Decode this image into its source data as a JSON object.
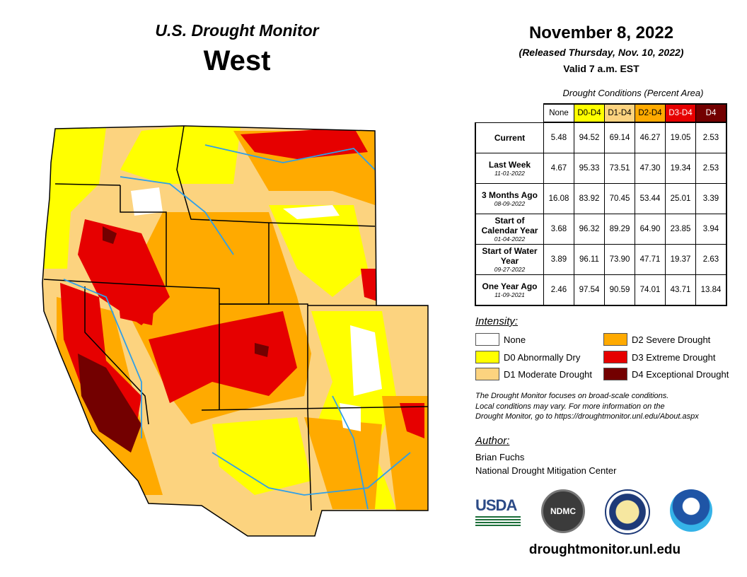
{
  "header": {
    "subtitle": "U.S. Drought Monitor",
    "title": "West",
    "date": "November 8, 2022",
    "released": "(Released Thursday, Nov. 10, 2022)",
    "valid": "Valid 7 a.m. EST"
  },
  "table": {
    "caption": "Drought Conditions (Percent Area)",
    "columns": [
      "None",
      "D0-D4",
      "D1-D4",
      "D2-D4",
      "D3-D4",
      "D4"
    ],
    "column_colors": [
      "#ffffff",
      "#ffff00",
      "#fcd37f",
      "#ffaa00",
      "#e60000",
      "#730000"
    ],
    "rows": [
      {
        "label": "Current",
        "date": "",
        "values": [
          "5.48",
          "94.52",
          "69.14",
          "46.27",
          "19.05",
          "2.53"
        ]
      },
      {
        "label": "Last Week",
        "date": "11-01-2022",
        "values": [
          "4.67",
          "95.33",
          "73.51",
          "47.30",
          "19.34",
          "2.53"
        ]
      },
      {
        "label": "3 Months Ago",
        "date": "08-09-2022",
        "values": [
          "16.08",
          "83.92",
          "70.45",
          "53.44",
          "25.01",
          "3.39"
        ]
      },
      {
        "label": "Start of Calendar Year",
        "date": "01-04-2022",
        "values": [
          "3.68",
          "96.32",
          "89.29",
          "64.90",
          "23.85",
          "3.94"
        ]
      },
      {
        "label": "Start of Water Year",
        "date": "09-27-2022",
        "values": [
          "3.89",
          "96.11",
          "73.90",
          "47.71",
          "19.37",
          "2.63"
        ]
      },
      {
        "label": "One Year Ago",
        "date": "11-09-2021",
        "values": [
          "2.46",
          "97.54",
          "90.59",
          "74.01",
          "43.71",
          "13.84"
        ]
      }
    ]
  },
  "legend": {
    "title": "Intensity:",
    "items": [
      {
        "label": "None",
        "color": "#ffffff"
      },
      {
        "label": "D0 Abnormally Dry",
        "color": "#ffff00"
      },
      {
        "label": "D1 Moderate Drought",
        "color": "#fcd37f"
      },
      {
        "label": "D2 Severe Drought",
        "color": "#ffaa00"
      },
      {
        "label": "D3 Extreme Drought",
        "color": "#e60000"
      },
      {
        "label": "D4 Exceptional Drought",
        "color": "#730000"
      }
    ]
  },
  "note": [
    "The Drought Monitor focuses on broad-scale conditions.",
    "Local conditions may vary. For more information on the",
    "Drought Monitor, go to https://droughtmonitor.unl.edu/About.aspx"
  ],
  "author": {
    "title": "Author:",
    "name": "Brian Fuchs",
    "org": "National Drought Mitigation Center"
  },
  "logos": {
    "usda": "USDA",
    "ndmc": "NDMC"
  },
  "url": "droughtmonitor.unl.edu"
}
